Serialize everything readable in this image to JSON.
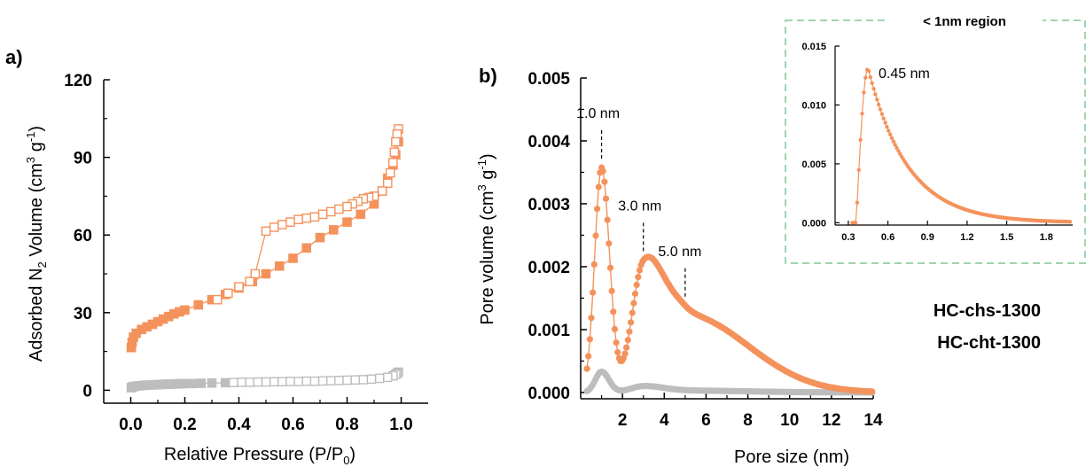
{
  "colors": {
    "orange": "#f4925c",
    "grey": "#bdbdbd",
    "region_border": "#9fd4ad"
  },
  "chart_data": [
    {
      "type": "scatter",
      "panel_label": "a)",
      "xlabel": "Relative Pressure (P/P",
      "xlabel_sub": "0",
      "xlabel_end": ")",
      "ylabel": "Adsorbed N",
      "ylabel_sub": "2",
      "ylabel_mid": " Volume (cm",
      "ylabel_sup": "3",
      "ylabel_g": " g",
      "ylabel_sup2": "-1",
      "ylabel_end": ")",
      "xlim": [
        -0.1,
        1.1
      ],
      "ylim": [
        -5,
        120
      ],
      "xticks": [
        0.0,
        0.2,
        0.4,
        0.6,
        0.8,
        1.0
      ],
      "xtick_labels": [
        "0.0",
        "0.2",
        "0.4",
        "0.6",
        "0.8",
        "1.0"
      ],
      "yticks": [
        0,
        30,
        60,
        90,
        120
      ],
      "ytick_labels": [
        "0",
        "30",
        "60",
        "90",
        "120"
      ],
      "series": [
        {
          "kind": "adsorption",
          "color": "orange",
          "filled": true,
          "x": [
            0.002,
            0.005,
            0.01,
            0.02,
            0.04,
            0.06,
            0.08,
            0.1,
            0.12,
            0.14,
            0.16,
            0.18,
            0.2,
            0.25,
            0.3,
            0.35,
            0.4,
            0.45,
            0.5,
            0.55,
            0.6,
            0.65,
            0.7,
            0.75,
            0.8,
            0.85,
            0.9,
            0.93,
            0.95,
            0.97,
            0.98,
            0.99
          ],
          "y": [
            16.5,
            18.5,
            20.5,
            22,
            23.5,
            24.5,
            25.5,
            26.5,
            27.5,
            28.5,
            29.5,
            30.3,
            31,
            33,
            35,
            37,
            39.5,
            42,
            45,
            48,
            51,
            55,
            59,
            62,
            65,
            68,
            72,
            77,
            82,
            87,
            91,
            96
          ]
        },
        {
          "kind": "desorption",
          "color": "orange",
          "filled": false,
          "x": [
            0.99,
            0.985,
            0.98,
            0.975,
            0.97,
            0.96,
            0.95,
            0.93,
            0.9,
            0.88,
            0.86,
            0.84,
            0.82,
            0.8,
            0.77,
            0.74,
            0.71,
            0.68,
            0.65,
            0.62,
            0.59,
            0.56,
            0.53,
            0.5,
            0.46,
            0.44,
            0.4,
            0.36,
            0.32
          ],
          "y": [
            101,
            99,
            96,
            92,
            88,
            84,
            80,
            77,
            75,
            74.5,
            74,
            73,
            72,
            71,
            70,
            69,
            68,
            67,
            66.5,
            66,
            65,
            64,
            63,
            61.5,
            45,
            42,
            40,
            37.5,
            35
          ]
        },
        {
          "kind": "adsorption",
          "color": "grey",
          "filled": true,
          "x": [
            0.002,
            0.005,
            0.01,
            0.02,
            0.03,
            0.04,
            0.05,
            0.06,
            0.07,
            0.08,
            0.09,
            0.1,
            0.11,
            0.12,
            0.13,
            0.14,
            0.15,
            0.16,
            0.17,
            0.18,
            0.19,
            0.2,
            0.23,
            0.26,
            0.3,
            0.35
          ],
          "y": [
            1.0,
            1.2,
            1.4,
            1.6,
            1.7,
            1.8,
            1.9,
            2.0,
            2.0,
            2.1,
            2.1,
            2.2,
            2.2,
            2.3,
            2.3,
            2.4,
            2.4,
            2.4,
            2.5,
            2.5,
            2.5,
            2.6,
            2.6,
            2.7,
            2.8,
            2.9
          ]
        },
        {
          "kind": "desorption",
          "color": "grey",
          "filled": false,
          "x": [
            0.99,
            0.985,
            0.98,
            0.97,
            0.95,
            0.92,
            0.89,
            0.86,
            0.83,
            0.8,
            0.77,
            0.74,
            0.71,
            0.68,
            0.65,
            0.62,
            0.59,
            0.56,
            0.53,
            0.5,
            0.47,
            0.44,
            0.41,
            0.38
          ],
          "y": [
            7,
            6.6,
            6.2,
            5.6,
            5.0,
            4.6,
            4.3,
            4.1,
            4.0,
            3.9,
            3.8,
            3.7,
            3.6,
            3.5,
            3.5,
            3.4,
            3.4,
            3.3,
            3.3,
            3.2,
            3.2,
            3.1,
            3.1,
            3.0
          ]
        }
      ]
    },
    {
      "type": "line",
      "panel_label": "b)",
      "xlabel": "Pore size (nm)",
      "ylabel": "Pore volume (cm",
      "ylabel_sup": "3",
      "ylabel_g": " g",
      "ylabel_sup2": "-1",
      "ylabel_end": ")",
      "xlim": [
        0,
        14
      ],
      "ylim": [
        -0.0001,
        0.005
      ],
      "xticks": [
        2,
        4,
        6,
        8,
        10,
        12,
        14
      ],
      "xtick_labels": [
        "2",
        "4",
        "6",
        "8",
        "10",
        "12",
        "14"
      ],
      "yticks": [
        0,
        0.001,
        0.002,
        0.003,
        0.004,
        0.005
      ],
      "ytick_labels": [
        "0.000",
        "0.001",
        "0.002",
        "0.003",
        "0.004",
        "0.005"
      ],
      "legend": [
        {
          "label": "HC-chs-1300",
          "color": "grey"
        },
        {
          "label": "HC-cht-1300",
          "color": "orange"
        }
      ],
      "annotations": [
        {
          "text": "1.0 nm",
          "x": 1.0
        },
        {
          "text": "3.0 nm",
          "x": 3.0
        },
        {
          "text": "5.0 nm",
          "x": 5.0
        }
      ],
      "series": [
        {
          "name": "HC-cht-1300",
          "color": "orange",
          "peaks": [
            {
              "center": 1.0,
              "height": 0.00357,
              "width_left": 0.33,
              "width_right": 0.38
            },
            {
              "center": 3.0,
              "height": 0.0018,
              "width_left": 0.55,
              "width_right": 0.9
            },
            {
              "center": 5.0,
              "height": 0.00123,
              "width_left": 1.2,
              "width_right": 3.0
            }
          ],
          "x_start": 0.3,
          "x_end": 14.0
        },
        {
          "name": "HC-chs-1300",
          "color": "grey",
          "peaks": [
            {
              "center": 1.0,
              "height": 0.00033,
              "width_left": 0.3,
              "width_right": 0.35
            },
            {
              "center": 3.0,
              "height": 9e-05,
              "width_left": 0.6,
              "width_right": 0.9
            },
            {
              "center": 5.0,
              "height": 3e-05,
              "width_left": 1.5,
              "width_right": 3.0
            }
          ],
          "x_start": 0.3,
          "x_end": 14.0
        }
      ]
    },
    {
      "type": "line",
      "inset": true,
      "region_label": "< 1nm region",
      "xlim": [
        0.2,
        2.0
      ],
      "ylim": [
        -0.0002,
        0.015
      ],
      "xticks": [
        0.3,
        0.6,
        0.9,
        1.2,
        1.5,
        1.8
      ],
      "xtick_labels": [
        "0.3",
        "0.6",
        "0.9",
        "1.2",
        "1.5",
        "1.8"
      ],
      "yticks": [
        0,
        0.005,
        0.01,
        0.015
      ],
      "ytick_labels": [
        "0.000",
        "0.005",
        "0.010",
        "0.015"
      ],
      "annotation": {
        "text": "0.45 nm",
        "x": 0.45
      },
      "series": [
        {
          "color": "orange",
          "onset": 0.36,
          "peak_x": 0.45,
          "peak_y": 0.0131,
          "decay": 0.3,
          "x_end": 2.0
        }
      ]
    }
  ]
}
